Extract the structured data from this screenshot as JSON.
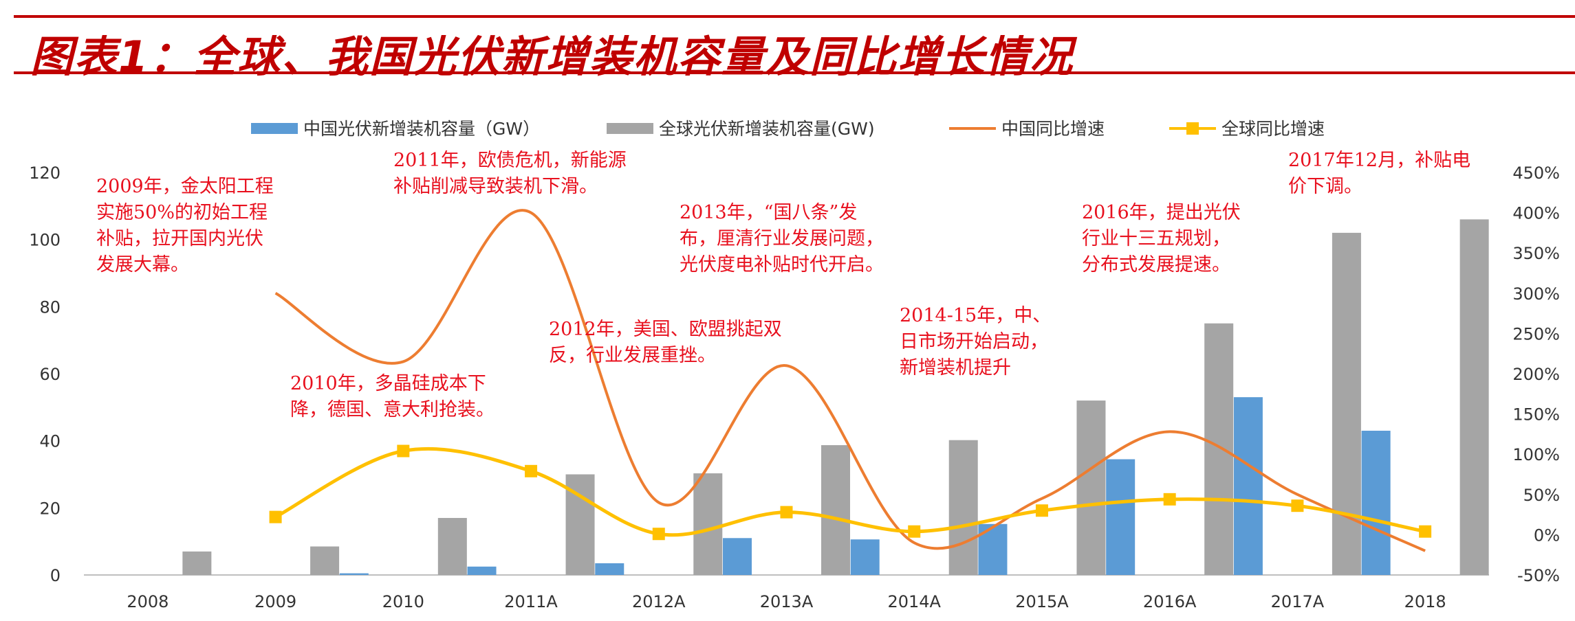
{
  "header": {
    "title": "图表1：全球、我国光伏新增装机容量及同比增长情况"
  },
  "colors": {
    "china_bar": "#5b9bd5",
    "global_bar": "#a5a5a5",
    "china_line": "#ed7d31",
    "global_line": "#ffc000",
    "accent": "#c00000",
    "note_text": "#e8101e"
  },
  "chart_data": {
    "type": "bar",
    "categories": [
      "2008",
      "2009",
      "2010",
      "2011A",
      "2012A",
      "2013A",
      "2014A",
      "2015A",
      "2016A",
      "2017A",
      "2018"
    ],
    "y_left": {
      "min": 0,
      "max": 120,
      "ticks": [
        "0",
        "20",
        "40",
        "60",
        "80",
        "100",
        "120"
      ]
    },
    "y_right": {
      "min": -50,
      "max": 450,
      "ticks": [
        "-50%",
        "0%",
        "50%",
        "100%",
        "150%",
        "200%",
        "250%",
        "300%",
        "350%",
        "400%",
        "450%"
      ]
    },
    "legend_position": "top",
    "grid": false,
    "series": [
      {
        "name": "中国光伏新增装机容量（GW）",
        "kind": "bar",
        "axis": "left",
        "values": [
          0,
          0,
          0.5,
          2.5,
          3.5,
          11,
          10.6,
          15.2,
          34.5,
          53,
          43
        ]
      },
      {
        "name": "全球光伏新增装机容量(GW)",
        "kind": "bar",
        "axis": "left",
        "values": [
          7,
          8.5,
          17,
          30,
          30.3,
          38.7,
          40.2,
          52,
          75,
          102,
          106
        ]
      },
      {
        "name": "中国同比增速",
        "kind": "line",
        "axis": "right",
        "values": [
          null,
          300,
          215,
          400,
          40,
          210,
          -10,
          45,
          128,
          50,
          -20
        ]
      },
      {
        "name": "全球同比增速",
        "kind": "line",
        "axis": "right",
        "marker": "square",
        "values": [
          null,
          22,
          104,
          79,
          1,
          28,
          4,
          30,
          44,
          36,
          4
        ]
      }
    ],
    "annotations": [
      {
        "lines": [
          "2009年，金太阳工程",
          "实施50%的初始工程",
          "补贴，拉开国内光伏",
          "发展大幕。"
        ]
      },
      {
        "lines": [
          "2010年，多晶硅成本下",
          "降，德国、意大利抢装。"
        ]
      },
      {
        "lines": [
          "2011年，欧债危机，新能源",
          "补贴削减导致装机下滑。"
        ]
      },
      {
        "lines": [
          "2012年，美国、欧盟挑起双",
          "反，行业发展重挫。"
        ]
      },
      {
        "lines": [
          "2013年，“国八条”发",
          "布，厘清行业发展问题，",
          "光伏度电补贴时代开启。"
        ]
      },
      {
        "lines": [
          "2014-15年，中、",
          "日市场开始启动，",
          "新增装机提升"
        ]
      },
      {
        "lines": [
          "2016年，提出光伏",
          "行业十三五规划，",
          "分布式发展提速。"
        ]
      },
      {
        "lines": [
          "2017年12月，补贴电",
          "价下调。"
        ]
      }
    ]
  }
}
